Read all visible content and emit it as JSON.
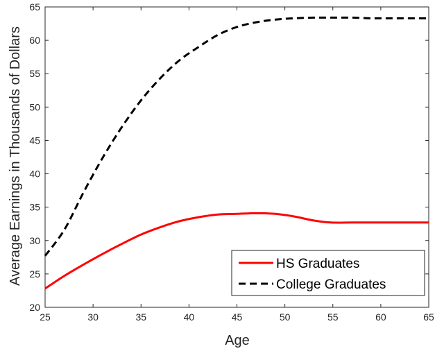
{
  "chart_data": {
    "type": "line",
    "title": "",
    "xlabel": "Age",
    "ylabel": "Average Earnings in Thousands of Dollars",
    "xlim": [
      25,
      65
    ],
    "ylim": [
      20,
      65
    ],
    "xticks": [
      25,
      30,
      35,
      40,
      45,
      50,
      55,
      60,
      65
    ],
    "yticks": [
      20,
      25,
      30,
      35,
      40,
      45,
      50,
      55,
      60,
      65
    ],
    "grid": false,
    "legend_position": "bottom-right",
    "series": [
      {
        "name": "HS Graduates",
        "color": "#ff0000",
        "style": "solid",
        "x": [
          25,
          27,
          29,
          31,
          33,
          35,
          37,
          39,
          41,
          43,
          45,
          47,
          49,
          51,
          53,
          54.8,
          57,
          59,
          61,
          63,
          65
        ],
        "y": [
          22.8,
          24.7,
          26.4,
          28.0,
          29.5,
          30.9,
          32.0,
          32.9,
          33.5,
          33.9,
          34.0,
          34.1,
          34.0,
          33.6,
          33.0,
          32.7,
          32.7,
          32.7,
          32.7,
          32.7,
          32.7
        ]
      },
      {
        "name": "College Graduates",
        "color": "#000000",
        "style": "dashed",
        "x": [
          25,
          27,
          29,
          31,
          33,
          35,
          37,
          39,
          41,
          43,
          45,
          47,
          49,
          51,
          53,
          55,
          57,
          59,
          61,
          63,
          65
        ],
        "y": [
          27.7,
          31.6,
          37.2,
          42.4,
          47.0,
          51.0,
          54.3,
          57.0,
          59.0,
          60.8,
          62.0,
          62.7,
          63.1,
          63.3,
          63.4,
          63.4,
          63.4,
          63.3,
          63.3,
          63.3,
          63.3
        ]
      }
    ]
  }
}
